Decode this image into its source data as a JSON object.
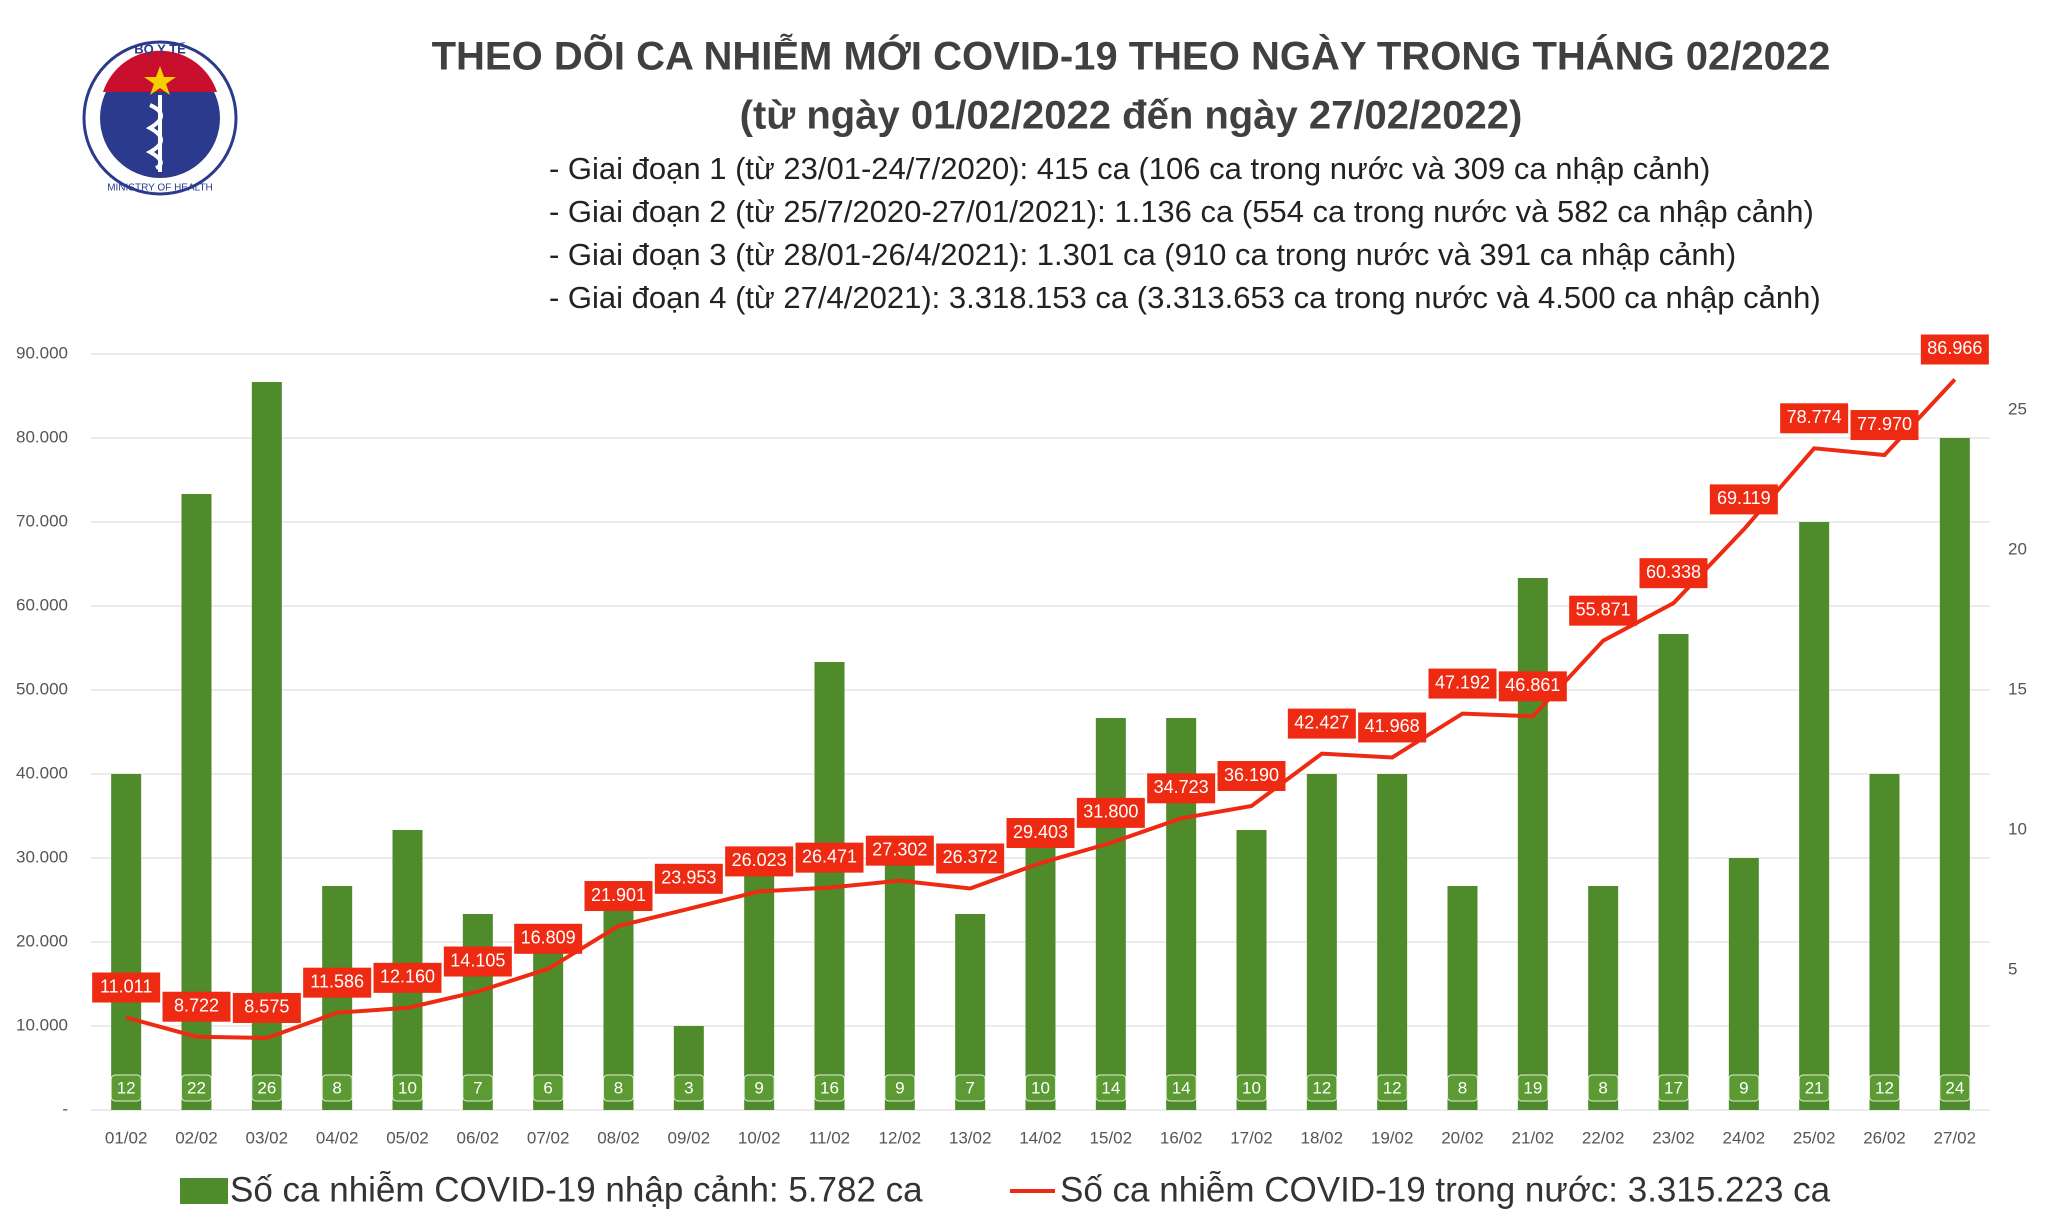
{
  "logo": {
    "top": "BỘ Y TẾ",
    "bottom": "MINISTRY OF HEALTH"
  },
  "chart_data": {
    "type": "bar_line",
    "title": "THEO DÕI CA NHIỄM MỚI COVID-19 THEO NGÀY TRONG THÁNG 02/2022",
    "subtitle": "(từ ngày 01/02/2022 đến ngày 27/02/2022)",
    "notes": [
      "- Giai đoạn 1 (từ 23/01-24/7/2020): 415 ca (106 ca trong nước và 309 ca nhập cảnh)",
      "- Giai đoạn 2 (từ 25/7/2020-27/01/2021): 1.136 ca (554 ca trong nước và 582 ca nhập cảnh)",
      "- Giai đoạn 3 (từ 28/01-26/4/2021): 1.301 ca (910 ca trong nước và 391 ca nhập cảnh)",
      "- Giai đoạn 4 (từ 27/4/2021): 3.318.153 ca (3.313.653 ca trong nước và 4.500 ca nhập cảnh)"
    ],
    "categories": [
      "01/02",
      "02/02",
      "03/02",
      "04/02",
      "05/02",
      "06/02",
      "07/02",
      "08/02",
      "09/02",
      "10/02",
      "11/02",
      "12/02",
      "13/02",
      "14/02",
      "15/02",
      "16/02",
      "17/02",
      "18/02",
      "19/02",
      "20/02",
      "21/02",
      "22/02",
      "23/02",
      "24/02",
      "25/02",
      "26/02",
      "27/02"
    ],
    "series": [
      {
        "name": "Số ca nhiễm COVID-19 nhập cảnh: 5.782 ca",
        "type": "bar",
        "axis": "y2",
        "color": "#4f8a2b",
        "values": [
          12,
          22,
          26,
          8,
          10,
          7,
          6,
          8,
          3,
          9,
          16,
          9,
          7,
          10,
          14,
          14,
          10,
          12,
          12,
          8,
          19,
          8,
          17,
          9,
          21,
          12,
          24
        ]
      },
      {
        "name": "Số ca nhiễm COVID-19 trong nước: 3.315.223 ca",
        "type": "line",
        "color": "#ee2b12",
        "values": [
          11011,
          8722,
          8575,
          11586,
          12160,
          14105,
          16809,
          21901,
          23953,
          26023,
          26471,
          27302,
          26372,
          29403,
          31800,
          34723,
          36190,
          42427,
          41968,
          47192,
          46861,
          55871,
          60338,
          69119,
          78774,
          77970,
          86966
        ],
        "value_labels": [
          "11.011",
          "8.722",
          "8.575",
          "11.586",
          "12.160",
          "14.105",
          "16.809",
          "21.901",
          "23.953",
          "26.023",
          "26.471",
          "27.302",
          "26.372",
          "29.403",
          "31.800",
          "34.723",
          "36.190",
          "42.427",
          "41.968",
          "47.192",
          "46.861",
          "55.871",
          "60.338",
          "69.119",
          "78.774",
          "77.970",
          "86.966"
        ]
      }
    ],
    "ylim": [
      0,
      90000
    ],
    "yticks": [
      {
        "value": 0,
        "label": "-"
      },
      {
        "value": 10000,
        "label": "10.000"
      },
      {
        "value": 20000,
        "label": "20.000"
      },
      {
        "value": 30000,
        "label": "30.000"
      },
      {
        "value": 40000,
        "label": "40.000"
      },
      {
        "value": 50000,
        "label": "50.000"
      },
      {
        "value": 60000,
        "label": "60.000"
      },
      {
        "value": 70000,
        "label": "70.000"
      },
      {
        "value": 80000,
        "label": "80.000"
      },
      {
        "value": 90000,
        "label": "90.000"
      }
    ],
    "y2lim": [
      0,
      27
    ],
    "y2ticks": [
      5,
      10,
      15,
      20,
      25
    ],
    "grid": true
  }
}
